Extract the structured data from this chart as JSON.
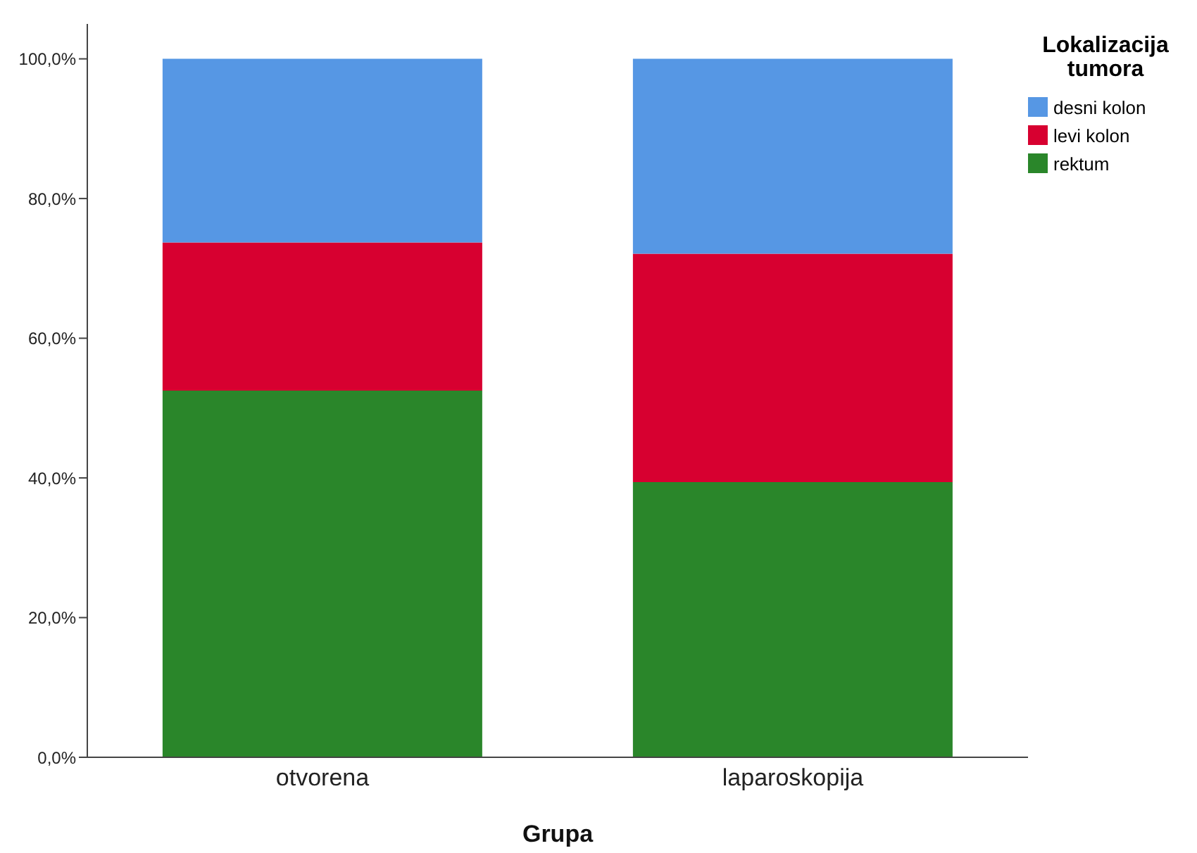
{
  "chart_data": {
    "type": "bar",
    "stacked": true,
    "xlabel": "Grupa",
    "legend_title": "Lokalizacija tumora",
    "categories": [
      "otvorena",
      "laparoskopija"
    ],
    "series": [
      {
        "name": "rektum",
        "color": "#2a862a",
        "values": [
          52.5,
          39.4
        ]
      },
      {
        "name": "levi kolon",
        "color": "#d70030",
        "values": [
          21.2,
          32.7
        ]
      },
      {
        "name": "desni kolon",
        "color": "#5697e4",
        "values": [
          26.3,
          27.9
        ]
      }
    ],
    "ylim": [
      0,
      105
    ],
    "yticks": [
      {
        "value": 0,
        "label": "0,0%"
      },
      {
        "value": 20,
        "label": "20,0%"
      },
      {
        "value": 40,
        "label": "40,0%"
      },
      {
        "value": 60,
        "label": "60,0%"
      },
      {
        "value": 80,
        "label": "80,0%"
      },
      {
        "value": 100,
        "label": "100,0%"
      }
    ],
    "grid": false,
    "legend": "top right"
  }
}
